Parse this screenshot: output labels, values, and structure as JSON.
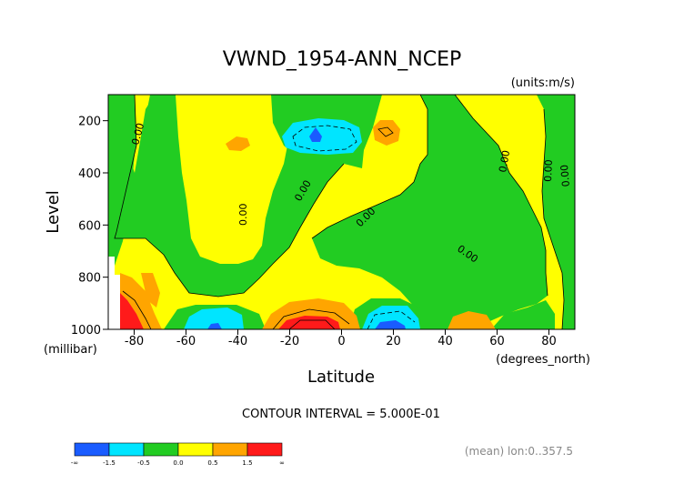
{
  "chart_data": {
    "type": "heatmap",
    "title": "VWND_1954-ANN_NCEP",
    "units_label": "(units:m/s)",
    "xlabel": "Latitude",
    "x_units_label": "(degrees_north)",
    "ylabel": "Level",
    "y_units_label": "(millibar)",
    "xlim": [
      -90,
      90
    ],
    "ylim": [
      1000,
      100
    ],
    "x_tick_labels": [
      "-80",
      "-60",
      "-40",
      "-20",
      "0",
      "20",
      "40",
      "60",
      "80"
    ],
    "y_tick_labels": [
      "200",
      "400",
      "600",
      "800",
      "1000"
    ],
    "contour_interval_text": "CONTOUR INTERVAL = 5.000E-01",
    "contour_labels": [
      "0.00",
      "0.00",
      "0.00",
      "0.00",
      "0.00",
      "0.00",
      "0.00",
      "0.00"
    ],
    "mean_text": "(mean) lon:0..357.5",
    "colorbar": {
      "colors": [
        "#1a5cff",
        "#00e5ff",
        "#22cc22",
        "#ffff00",
        "#ffa500",
        "#ff1a1a"
      ],
      "labels": [
        "-∞",
        "-1.5",
        "-0.5",
        "0.0",
        "0.5",
        "1.5",
        "∞"
      ]
    },
    "features": [
      {
        "kind": "negative-core",
        "lat": -8,
        "level": 200,
        "value": -2.0
      },
      {
        "kind": "positive-core",
        "lat": -12,
        "level": 1000,
        "value": 2.0
      },
      {
        "kind": "positive-core",
        "lat": -88,
        "level": 1000,
        "value": 2.0
      },
      {
        "kind": "negative-core",
        "lat": 17,
        "level": 1000,
        "value": -2.0
      },
      {
        "kind": "negative-core",
        "lat": -50,
        "level": 1000,
        "value": -1.5
      }
    ]
  }
}
